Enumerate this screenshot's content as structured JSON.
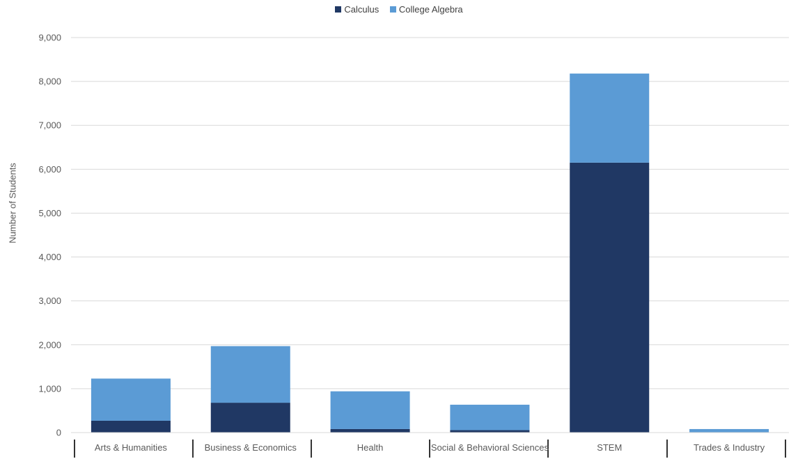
{
  "colors": {
    "calculus": "#203864",
    "college_algebra": "#5b9bd5",
    "gridline": "#d9d9d9",
    "axis": "#000000",
    "text": "#595959"
  },
  "legend": {
    "items": [
      "Calculus",
      "College Algebra"
    ]
  },
  "chart_data": {
    "type": "bar",
    "stacked": true,
    "categories": [
      "Arts & Humanities",
      "Business & Economics",
      "Health",
      "Social & Behavioral Sciences",
      "STEM",
      "Trades & Industry"
    ],
    "series": [
      {
        "name": "Calculus",
        "values": [
          270,
          680,
          80,
          55,
          6150,
          5
        ]
      },
      {
        "name": "College Algebra",
        "values": [
          960,
          1290,
          860,
          580,
          2030,
          75
        ]
      }
    ],
    "title": "",
    "xlabel": "",
    "ylabel": "Number of Students",
    "ylim": [
      0,
      9000
    ],
    "yticks": [
      0,
      1000,
      2000,
      3000,
      4000,
      5000,
      6000,
      7000,
      8000,
      9000
    ],
    "ytick_labels": [
      "0",
      "1,000",
      "2,000",
      "3,000",
      "4,000",
      "5,000",
      "6,000",
      "7,000",
      "8,000",
      "9,000"
    ],
    "grid": true,
    "legend_position": "top"
  }
}
